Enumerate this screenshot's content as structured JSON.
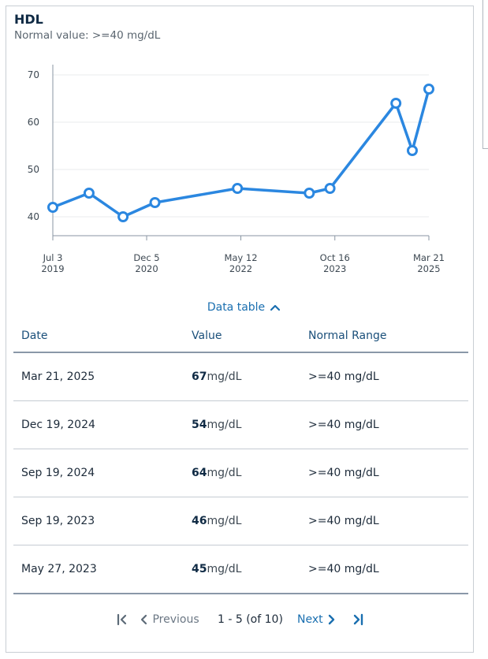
{
  "header": {
    "title": "HDL",
    "subtitle": "Normal value: >=40 mg/dL"
  },
  "chart_data": {
    "type": "line",
    "title": "HDL",
    "xlabel": "",
    "ylabel": "",
    "ylim": [
      36,
      71
    ],
    "yticks": [
      40,
      50,
      60,
      70
    ],
    "grid": true,
    "color": "#2b87e0",
    "xticks": [
      {
        "date": "2019-07-03",
        "line1": "Jul 3",
        "line2": "2019"
      },
      {
        "date": "2020-12-05",
        "line1": "Dec 5",
        "line2": "2020"
      },
      {
        "date": "2022-05-12",
        "line1": "May 12",
        "line2": "2022"
      },
      {
        "date": "2023-10-16",
        "line1": "Oct 16",
        "line2": "2023"
      },
      {
        "date": "2025-03-21",
        "line1": "Mar 21",
        "line2": "2025"
      }
    ],
    "series": [
      {
        "points": [
          {
            "x": "2019-07-03",
            "y": 42
          },
          {
            "x": "2020-01-20",
            "y": 45
          },
          {
            "x": "2020-07-27",
            "y": 40
          },
          {
            "x": "2021-01-20",
            "y": 43
          },
          {
            "x": "2022-04-23",
            "y": 46
          },
          {
            "x": "2023-05-27",
            "y": 45
          },
          {
            "x": "2023-09-19",
            "y": 46
          },
          {
            "x": "2024-09-19",
            "y": 64
          },
          {
            "x": "2024-12-19",
            "y": 54
          },
          {
            "x": "2025-03-21",
            "y": 67
          }
        ]
      }
    ]
  },
  "data_table": {
    "toggle_label": "Data table",
    "columns": [
      "Date",
      "Value",
      "Normal Range"
    ],
    "rows": [
      {
        "date": "Mar 21, 2025",
        "value": "67",
        "unit": "mg/dL",
        "range": ">=40 mg/dL"
      },
      {
        "date": "Dec 19, 2024",
        "value": "54",
        "unit": "mg/dL",
        "range": ">=40 mg/dL"
      },
      {
        "date": "Sep 19, 2024",
        "value": "64",
        "unit": "mg/dL",
        "range": ">=40 mg/dL"
      },
      {
        "date": "Sep 19, 2023",
        "value": "46",
        "unit": "mg/dL",
        "range": ">=40 mg/dL"
      },
      {
        "date": "May 27, 2023",
        "value": "45",
        "unit": "mg/dL",
        "range": ">=40 mg/dL"
      }
    ]
  },
  "pagination": {
    "previous_label": "Previous",
    "page_info": "1 - 5 (of 10)",
    "next_label": "Next"
  },
  "icons": {
    "toggle": "chevron-up-icon",
    "first": "first-page-icon",
    "previous": "chevron-left-icon",
    "next": "chevron-right-icon",
    "last": "last-page-icon"
  }
}
